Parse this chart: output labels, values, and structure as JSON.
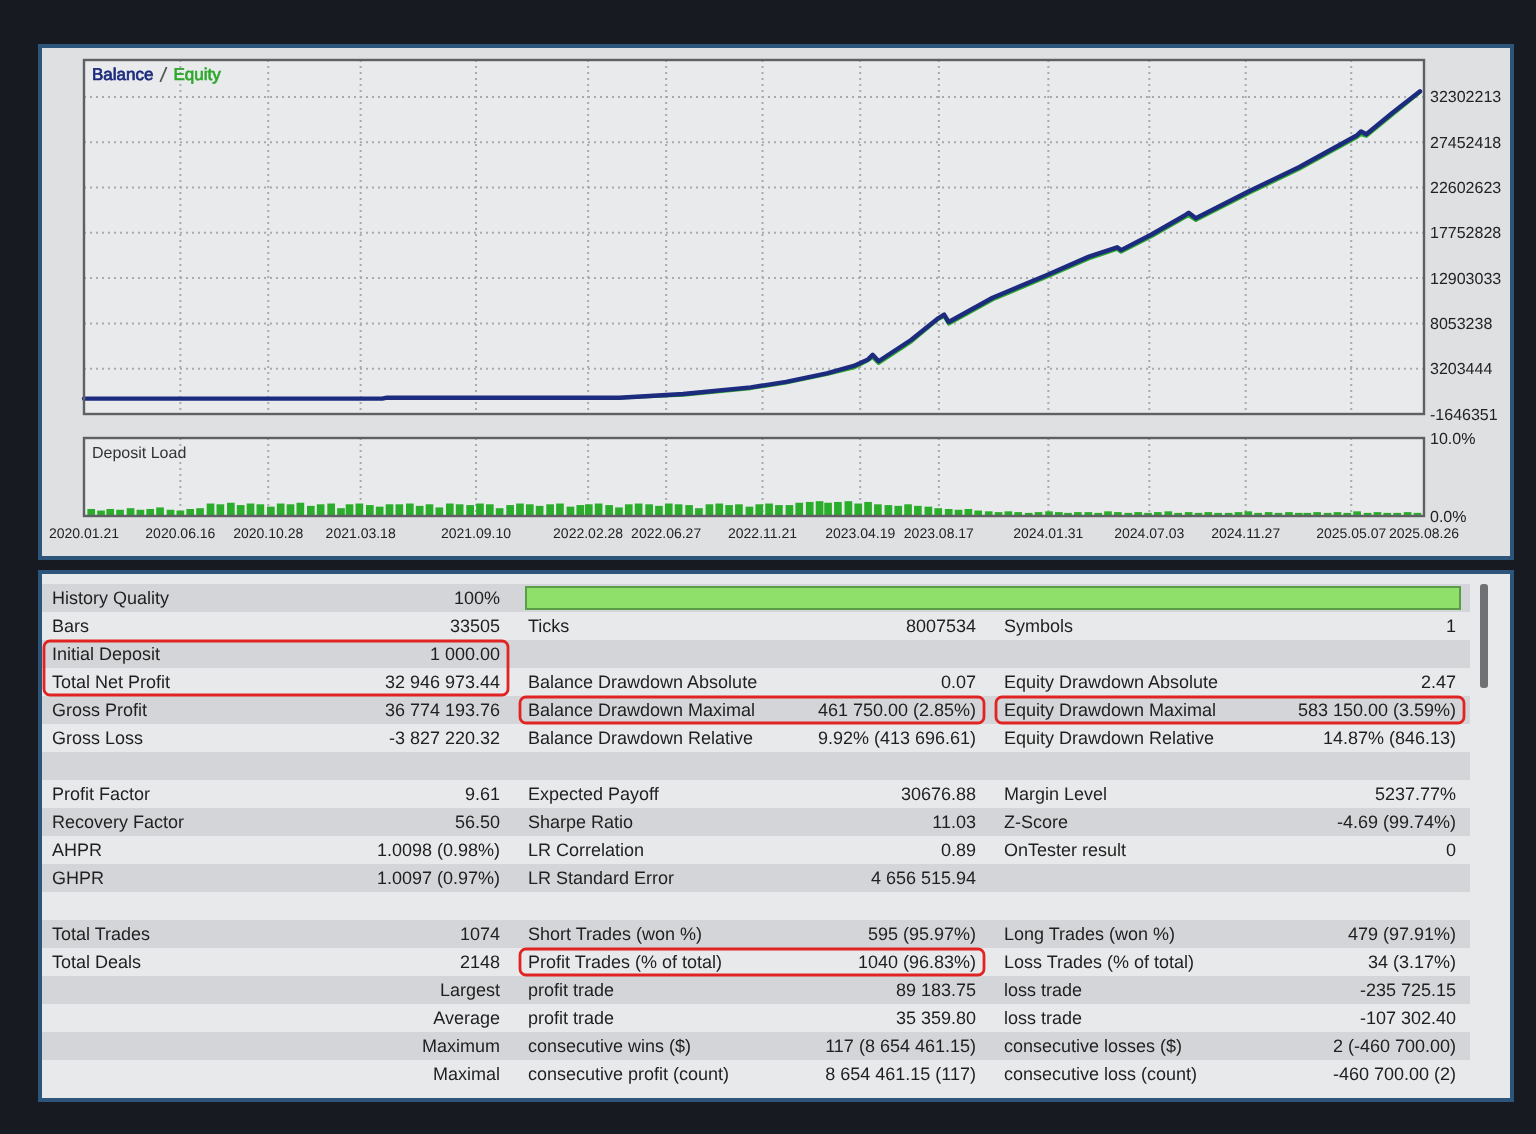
{
  "chart_data": [
    {
      "type": "line",
      "legend": "top left",
      "grid": true,
      "tick_labels": "y",
      "x": [
        "2020-01-21",
        "2021-04-20",
        "2021-04-27",
        "2022-04-17",
        "2022-07-23",
        "2022-11-03",
        "2022-12-27",
        "2023-02-27",
        "2023-04-09",
        "2023-05-01",
        "2023-05-08",
        "2023-05-17",
        "2023-07-06",
        "2023-08-16",
        "2023-08-25",
        "2023-09-01",
        "2023-11-07",
        "2024-01-28",
        "2024-04-02",
        "2024-05-15",
        "2024-05-21",
        "2024-07-07",
        "2024-08-26",
        "2024-09-01",
        "2024-09-12",
        "2024-12-02",
        "2025-02-17",
        "2025-05-16",
        "2025-05-22",
        "2025-05-30",
        "2025-07-09",
        "2025-08-20"
      ],
      "xlim": [
        "2020-01-21",
        "2025-08-26"
      ],
      "xticks": [
        {
          "value": "2020-01-21",
          "label": null
        },
        {
          "value": "2020-06-16",
          "label": null
        },
        {
          "value": "2020-10-28",
          "label": null
        },
        {
          "value": "2021-03-18",
          "label": null
        },
        {
          "value": "2021-09-10",
          "label": null
        },
        {
          "value": "2022-02-28",
          "label": null
        },
        {
          "value": "2022-06-27",
          "label": null
        },
        {
          "value": "2022-11-21",
          "label": null
        },
        {
          "value": "2023-04-19",
          "label": null
        },
        {
          "value": "2023-08-17",
          "label": null
        },
        {
          "value": "2024-01-31",
          "label": null
        },
        {
          "value": "2024-07-03",
          "label": null
        },
        {
          "value": "2024-11-27",
          "label": null
        },
        {
          "value": "2025-05-07",
          "label": null
        },
        {
          "value": "2025-08-26",
          "label": null
        }
      ],
      "ylim": [
        -1646351,
        36250000
      ],
      "yticks": [
        -1646351,
        3203444,
        8053238,
        12903033,
        17752828,
        22602623,
        27452418,
        32302213
      ],
      "series": [
        {
          "name": "Balance",
          "color": "#1c2b7e",
          "values": [
            0,
            0,
            100000,
            100000,
            500000,
            1200000,
            1800000,
            2700000,
            3500000,
            4200000,
            4700000,
            4000000,
            6300000,
            8600000,
            9000000,
            8200000,
            10800000,
            13200000,
            15200000,
            16200000,
            15900000,
            17600000,
            19600000,
            19900000,
            19300000,
            22200000,
            24800000,
            28200000,
            28600000,
            28300000,
            30600000,
            32900000
          ]
        },
        {
          "name": "Equity",
          "color": "#2ea82e",
          "values": [
            null,
            null,
            null,
            100000,
            400000,
            1100000,
            1700000,
            2600000,
            3300000,
            4100000,
            4400000,
            3800000,
            6100000,
            8500000,
            8800000,
            8000000,
            10600000,
            13000000,
            15000000,
            16000000,
            15700000,
            17400000,
            19400000,
            19600000,
            19100000,
            22000000,
            24600000,
            28000000,
            28300000,
            28100000,
            30400000,
            32800000
          ]
        }
      ]
    },
    {
      "type": "bar",
      "title": "Deposit Load",
      "grid": "x",
      "color": "#2aad2a",
      "x": [
        "2020-02-01",
        "2020-02-16",
        "2020-03-01",
        "2020-03-16",
        "2020-04-01",
        "2020-04-16",
        "2020-05-01",
        "2020-05-16",
        "2020-06-01",
        "2020-06-16",
        "2020-07-01",
        "2020-07-16",
        "2020-08-01",
        "2020-08-16",
        "2020-09-01",
        "2020-09-16",
        "2020-10-01",
        "2020-10-16",
        "2020-11-01",
        "2020-11-16",
        "2020-12-01",
        "2020-12-16",
        "2021-01-01",
        "2021-01-16",
        "2021-02-01",
        "2021-02-16",
        "2021-03-01",
        "2021-03-16",
        "2021-04-01",
        "2021-04-16",
        "2021-05-01",
        "2021-05-16",
        "2021-06-01",
        "2021-06-16",
        "2021-07-01",
        "2021-07-16",
        "2021-08-01",
        "2021-08-16",
        "2021-09-01",
        "2021-09-16",
        "2021-10-01",
        "2021-10-16",
        "2021-11-01",
        "2021-11-16",
        "2021-12-01",
        "2021-12-16",
        "2022-01-01",
        "2022-01-16",
        "2022-02-01",
        "2022-02-16",
        "2022-03-01",
        "2022-03-16",
        "2022-04-01",
        "2022-04-16",
        "2022-05-01",
        "2022-05-16",
        "2022-06-01",
        "2022-06-16",
        "2022-07-01",
        "2022-07-16",
        "2022-08-01",
        "2022-08-16",
        "2022-09-01",
        "2022-09-16",
        "2022-10-01",
        "2022-10-16",
        "2022-11-01",
        "2022-11-16",
        "2022-12-01",
        "2022-12-16",
        "2023-01-01",
        "2023-01-16",
        "2023-02-01",
        "2023-02-16",
        "2023-03-01",
        "2023-03-16",
        "2023-04-01",
        "2023-04-16",
        "2023-05-01",
        "2023-05-16",
        "2023-06-01",
        "2023-06-16",
        "2023-07-01",
        "2023-07-16",
        "2023-08-01",
        "2023-08-16",
        "2023-09-01",
        "2023-09-16",
        "2023-10-01",
        "2023-10-16",
        "2023-11-01",
        "2023-11-16",
        "2023-12-01",
        "2023-12-16",
        "2024-01-01",
        "2024-01-16",
        "2024-02-01",
        "2024-02-16",
        "2024-03-01",
        "2024-03-16",
        "2024-04-01",
        "2024-04-16",
        "2024-05-01",
        "2024-05-16",
        "2024-06-01",
        "2024-06-16",
        "2024-07-01",
        "2024-07-16",
        "2024-08-01",
        "2024-08-16",
        "2024-09-01",
        "2024-09-16",
        "2024-10-01",
        "2024-10-16",
        "2024-11-01",
        "2024-11-16",
        "2024-12-01",
        "2024-12-16",
        "2025-01-01",
        "2025-01-16",
        "2025-02-01",
        "2025-02-16",
        "2025-03-01",
        "2025-03-16",
        "2025-04-01",
        "2025-04-16",
        "2025-05-01",
        "2025-05-16",
        "2025-06-01",
        "2025-06-16",
        "2025-07-01",
        "2025-07-16",
        "2025-08-01",
        "2025-08-16"
      ],
      "values": [
        0.9,
        0.7,
        0.9,
        0.8,
        1.0,
        0.8,
        0.9,
        1.1,
        0.8,
        0.7,
        0.9,
        1.0,
        1.6,
        1.5,
        1.7,
        1.4,
        1.6,
        1.5,
        1.2,
        1.6,
        1.5,
        1.7,
        1.3,
        1.5,
        1.6,
        1.0,
        1.5,
        1.6,
        1.4,
        1.2,
        1.5,
        1.5,
        1.6,
        1.3,
        1.5,
        1.1,
        1.6,
        1.5,
        1.4,
        1.6,
        1.5,
        1.0,
        1.4,
        1.6,
        1.5,
        1.3,
        1.5,
        1.6,
        1.2,
        1.4,
        1.5,
        1.6,
        1.4,
        1.1,
        1.5,
        1.6,
        1.5,
        1.3,
        1.6,
        1.5,
        1.4,
        1.0,
        1.5,
        1.6,
        1.4,
        1.5,
        1.2,
        1.5,
        1.6,
        1.4,
        1.4,
        1.7,
        1.8,
        1.9,
        1.7,
        1.8,
        1.9,
        1.6,
        1.8,
        1.5,
        1.4,
        1.3,
        1.5,
        1.3,
        1.2,
        1.0,
        0.9,
        0.8,
        0.9,
        0.7,
        0.6,
        0.5,
        0.6,
        0.5,
        0.4,
        0.5,
        0.6,
        0.5,
        0.4,
        0.5,
        0.5,
        0.4,
        0.6,
        0.5,
        0.4,
        0.5,
        0.4,
        0.5,
        0.6,
        0.4,
        0.5,
        0.4,
        0.5,
        0.4,
        0.4,
        0.5,
        0.6,
        0.4,
        0.5,
        0.4,
        0.5,
        0.4,
        0.4,
        0.5,
        0.4,
        0.5,
        0.4,
        0.6,
        0.4,
        0.5,
        0.4,
        0.4,
        0.5,
        0.4
      ],
      "xlim": [
        "2020-01-21",
        "2025-08-26"
      ],
      "xticks": [
        {
          "value": "2020-01-21",
          "label": "2020.01.21"
        },
        {
          "value": "2020-06-16",
          "label": "2020.06.16"
        },
        {
          "value": "2020-10-28",
          "label": "2020.10.28"
        },
        {
          "value": "2021-03-18",
          "label": "2021.03.18"
        },
        {
          "value": "2021-09-10",
          "label": "2021.09.10"
        },
        {
          "value": "2022-02-28",
          "label": "2022.02.28"
        },
        {
          "value": "2022-06-27",
          "label": "2022.06.27"
        },
        {
          "value": "2022-11-21",
          "label": "2022.11.21"
        },
        {
          "value": "2023-04-19",
          "label": "2023.04.19"
        },
        {
          "value": "2023-08-17",
          "label": "2023.08.17"
        },
        {
          "value": "2024-01-31",
          "label": "2024.01.31"
        },
        {
          "value": "2024-07-03",
          "label": "2024.07.03"
        },
        {
          "value": "2024-11-27",
          "label": "2024.11.27"
        },
        {
          "value": "2025-05-07",
          "label": "2025.05.07"
        },
        {
          "value": "2025-08-26",
          "label": "2025.08.26"
        }
      ],
      "ylim": [
        0,
        10
      ],
      "yticks": [
        {
          "value": 0,
          "label": "0.0%"
        },
        {
          "value": 10,
          "label": "10.0%"
        }
      ]
    },
    {
      "type": "other",
      "annotations": [
        "History Quality",
        "100%",
        null,
        null,
        null,
        null,
        "Bars",
        "33505",
        "Ticks",
        "8007534",
        "Symbols",
        "1",
        "Initial Deposit",
        "1 000.00",
        null,
        null,
        null,
        null,
        "Total Net Profit",
        "32 946 973.44",
        "Balance Drawdown Absolute",
        "0.07",
        "Equity Drawdown Absolute",
        "2.47",
        "Gross Profit",
        "36 774 193.76",
        "Balance Drawdown Maximal",
        "461 750.00 (2.85%)",
        "Equity Drawdown Maximal",
        "583 150.00 (3.59%)",
        "Gross Loss",
        "-3 827 220.32",
        "Balance Drawdown Relative",
        "9.92% (413 696.61)",
        "Equity Drawdown Relative",
        "14.87% (846.13)",
        null,
        null,
        null,
        null,
        null,
        null,
        "Profit Factor",
        "9.61",
        "Expected Payoff",
        "30676.88",
        "Margin Level",
        "5237.77%",
        "Recovery Factor",
        "56.50",
        "Sharpe Ratio",
        "11.03",
        "Z-Score",
        "-4.69 (99.74%)",
        "AHPR",
        "1.0098 (0.98%)",
        "LR Correlation",
        "0.89",
        "OnTester result",
        "0",
        "GHPR",
        "1.0097 (0.97%)",
        "LR Standard Error",
        "4 656 515.94",
        null,
        null,
        null,
        null,
        null,
        null,
        null,
        null,
        "Total Trades",
        "1074",
        "Short Trades (won %)",
        "595 (95.97%)",
        "Long Trades (won %)",
        "479 (97.91%)",
        "Total Deals",
        "2148",
        "Profit Trades (% of total)",
        "1040 (96.83%)",
        "Loss Trades (% of total)",
        "34 (3.17%)",
        null,
        "Largest",
        "profit trade",
        "89 183.75",
        "loss trade",
        "-235 725.15",
        null,
        "Average",
        "profit trade",
        "35 359.80",
        "loss trade",
        "-107 302.40",
        null,
        "Maximum",
        "consecutive wins ($)",
        "117 (8 654 461.15)",
        "consecutive losses ($)",
        "2 (-460 700.00)",
        null,
        "Maximal",
        "consecutive profit (count)",
        "8 654 461.15 (117)",
        "consecutive loss (count)",
        "-460 700.00 (2)"
      ]
    }
  ]
}
